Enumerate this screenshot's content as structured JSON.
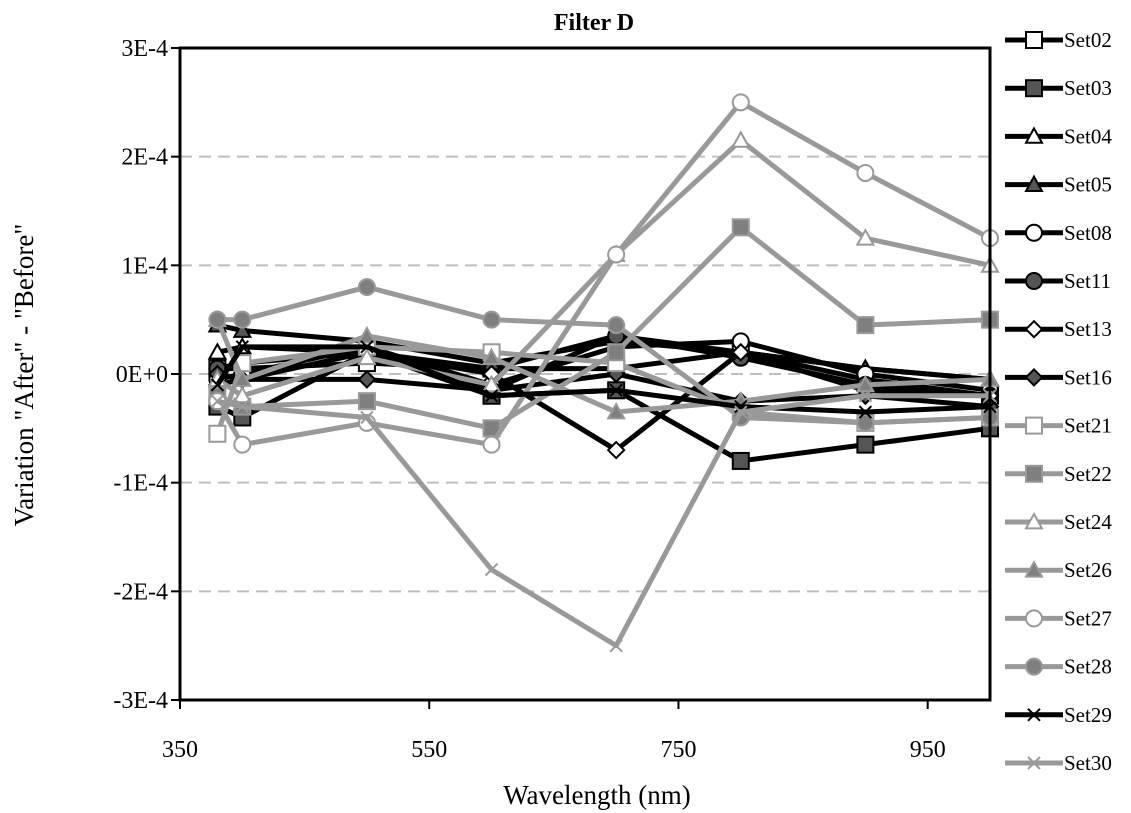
{
  "chart_data": {
    "type": "line",
    "title": "Filter D",
    "xlabel": "Wavelength (nm)",
    "ylabel": "Variation \"After\" -  \"Before\"",
    "xlim": [
      350,
      1000
    ],
    "ylim": [
      -0.0003,
      0.0003
    ],
    "xticks": [
      350,
      550,
      750,
      950
    ],
    "xtick_labels": [
      "350",
      "550",
      "750",
      "950"
    ],
    "yticks": [
      -0.0003,
      -0.0002,
      -0.0001,
      0,
      0.0001,
      0.0002,
      0.0003
    ],
    "ytick_labels": [
      "-3E-4",
      "-2E-4",
      "-1E-4",
      "0E+0",
      "1E-4",
      "2E-4",
      "3E-4"
    ],
    "grid": "horizontal-dashed",
    "legend_position": "right",
    "x": [
      380,
      400,
      500,
      600,
      700,
      800,
      900,
      1000
    ],
    "series": [
      {
        "name": "Set02",
        "color": "#000000",
        "marker": "square-open",
        "values": [
          5e-06,
          5e-06,
          1e-05,
          5e-06,
          5e-06,
          2e-05,
          -5e-06,
          -2e-05
        ]
      },
      {
        "name": "Set03",
        "color": "#000000",
        "marker": "square-filled",
        "values": [
          -3e-05,
          -4e-05,
          2e-05,
          -2e-05,
          -1.5e-05,
          -8e-05,
          -6.5e-05,
          -5e-05
        ]
      },
      {
        "name": "Set04",
        "color": "#000000",
        "marker": "triangle-open",
        "values": [
          2e-05,
          2.5e-05,
          2e-05,
          5e-06,
          3.5e-05,
          2e-05,
          5e-06,
          -5e-06
        ]
      },
      {
        "name": "Set05",
        "color": "#000000",
        "marker": "triangle-filled",
        "values": [
          4.5e-05,
          4e-05,
          3e-05,
          1e-05,
          3e-05,
          2e-05,
          5e-06,
          -5e-06
        ]
      },
      {
        "name": "Set08",
        "color": "#000000",
        "marker": "circle-open",
        "values": [
          -5e-06,
          0,
          2.5e-05,
          -1e-05,
          2.5e-05,
          3e-05,
          0,
          -1.5e-05
        ]
      },
      {
        "name": "Set11",
        "color": "#000000",
        "marker": "circle-filled",
        "values": [
          5e-06,
          1e-05,
          2e-05,
          -1.5e-05,
          3.5e-05,
          1.5e-05,
          -1e-05,
          -2e-05
        ]
      },
      {
        "name": "Set13",
        "color": "#000000",
        "marker": "diamond-open",
        "values": [
          -1e-05,
          -5e-06,
          2e-05,
          0,
          -7e-05,
          2e-05,
          -1.5e-05,
          -2e-05
        ]
      },
      {
        "name": "Set16",
        "color": "#000000",
        "marker": "diamond-filled",
        "values": [
          0,
          -5e-06,
          -5e-06,
          -1.5e-05,
          0,
          -2.5e-05,
          -2e-05,
          -3e-05
        ]
      },
      {
        "name": "Set21",
        "color": "#999999",
        "marker": "square-open",
        "values": [
          -5.5e-05,
          1e-05,
          2.5e-05,
          2e-05,
          1e-05,
          -3.5e-05,
          -4.5e-05,
          -4e-05
        ]
      },
      {
        "name": "Set22",
        "color": "#999999",
        "marker": "square-filled",
        "values": [
          -2e-05,
          -3e-05,
          -2.5e-05,
          -5e-05,
          2e-05,
          0.000135,
          4.5e-05,
          5e-05
        ]
      },
      {
        "name": "Set24",
        "color": "#999999",
        "marker": "triangle-open",
        "values": [
          -5e-06,
          -2e-05,
          1.5e-05,
          -1e-05,
          0.00011,
          0.000215,
          0.000125,
          0.0001
        ]
      },
      {
        "name": "Set26",
        "color": "#999999",
        "marker": "triangle-filled",
        "values": [
          5e-05,
          -5e-06,
          3.5e-05,
          1.5e-05,
          -3.5e-05,
          -2.5e-05,
          -1e-05,
          -5e-06
        ]
      },
      {
        "name": "Set27",
        "color": "#999999",
        "marker": "circle-open",
        "values": [
          -2.5e-05,
          -6.5e-05,
          -4.5e-05,
          -6.5e-05,
          0.00011,
          0.00025,
          0.000185,
          0.000125
        ]
      },
      {
        "name": "Set28",
        "color": "#999999",
        "marker": "circle-filled",
        "values": [
          5e-05,
          5e-05,
          8e-05,
          5e-05,
          4.5e-05,
          -4e-05,
          -4.5e-05,
          -4e-05
        ]
      },
      {
        "name": "Set29",
        "color": "#000000",
        "marker": "x",
        "values": [
          -1e-05,
          2.5e-05,
          2.5e-05,
          -2e-05,
          -1.5e-05,
          -3e-05,
          -3.5e-05,
          -3e-05
        ]
      },
      {
        "name": "Set30",
        "color": "#999999",
        "marker": "x",
        "values": [
          -2.5e-05,
          -3e-05,
          -4e-05,
          -0.00018,
          -0.00025,
          -3.5e-05,
          -2e-05,
          -2e-05
        ]
      }
    ]
  }
}
